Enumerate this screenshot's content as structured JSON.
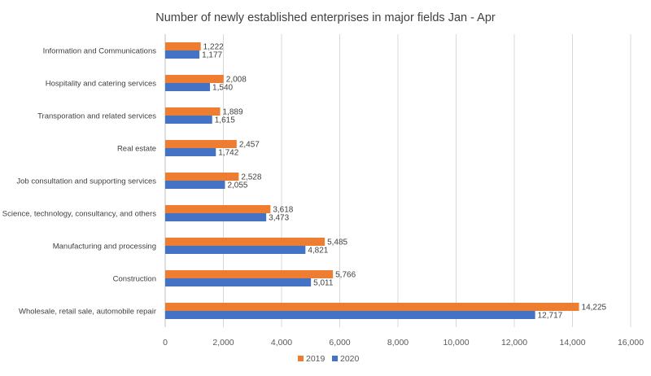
{
  "chart_data": {
    "type": "bar",
    "orientation": "horizontal",
    "title": "Number of newly established enterprises in major fields Jan - Apr",
    "xlabel": "",
    "ylabel": "",
    "categories": [
      "Information and Communications",
      "Hospitality and catering services",
      "Transporation and related services",
      "Real estate",
      "Job consultation and supporting services",
      "Science, technology, consultancy, and others",
      "Manufacturing and processing",
      "Construction",
      "Wholesale, retail sale, automobile repair"
    ],
    "series": [
      {
        "name": "2019",
        "color": "#ED7D31",
        "values": [
          1222,
          2008,
          1889,
          2457,
          2528,
          3618,
          5485,
          5766,
          14225
        ],
        "labels": [
          "1,222",
          "2,008",
          "1,889",
          "2,457",
          "2,528",
          "3,618",
          "5,485",
          "5,766",
          "14,225"
        ]
      },
      {
        "name": "2020",
        "color": "#4472C4",
        "values": [
          1177,
          1540,
          1615,
          1742,
          2055,
          3473,
          4821,
          5011,
          12717
        ],
        "labels": [
          "1,177",
          "1,540",
          "1,615",
          "1,742",
          "2,055",
          "3,473",
          "4,821",
          "5,011",
          "12,717"
        ]
      }
    ],
    "xlim": [
      0,
      16000
    ],
    "ticks": [
      0,
      2000,
      4000,
      6000,
      8000,
      10000,
      12000,
      14000,
      16000
    ],
    "tick_labels": [
      "0",
      "2,000",
      "4,000",
      "6,000",
      "8,000",
      "10,000",
      "12,000",
      "14,000",
      "16,000"
    ],
    "grid": true,
    "legend": "bottom",
    "data_labels": true
  }
}
